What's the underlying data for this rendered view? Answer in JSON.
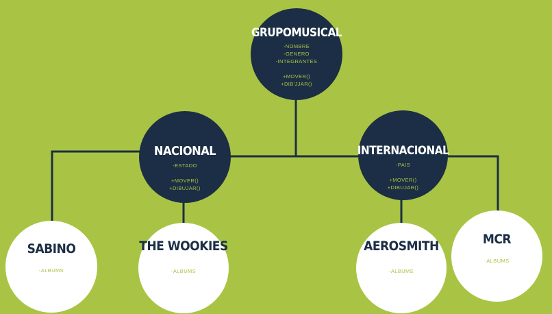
{
  "nodes": {
    "root": {
      "title": "GRUPOMUSICAL",
      "attributes": [
        "-NOMBRE",
        "-GENERO",
        "-INTEGRANTES"
      ],
      "methods": [
        "+MOVER()",
        "+DIB'JJAR()"
      ]
    },
    "nacional": {
      "title": "NACIONAL",
      "attributes": [
        "-ESTADO"
      ],
      "methods": [
        "+MOVER()",
        "+DIBUJAR()"
      ]
    },
    "internacional": {
      "title": "INTERNACIONAL",
      "attributes": [
        "-PAIS"
      ],
      "methods": [
        "+MOVER()",
        "+DIBUJAR()"
      ]
    },
    "sabino": {
      "title": "SABINO",
      "attributes": [
        "-ALBUMS"
      ]
    },
    "wookies": {
      "title": "THE WOOKIES",
      "attributes": [
        "-ALBUMS"
      ]
    },
    "aerosmith": {
      "title": "AEROSMITH",
      "attributes": [
        "-ALBUMS"
      ]
    },
    "mcr": {
      "title": "MCR",
      "attributes": [
        "-ALBUMS"
      ]
    }
  },
  "colors": {
    "background": "#a9c444",
    "node_dark": "#1b2e45",
    "node_light": "#ffffff",
    "connector": "#1b2e45",
    "member_text": "#a9c444"
  }
}
